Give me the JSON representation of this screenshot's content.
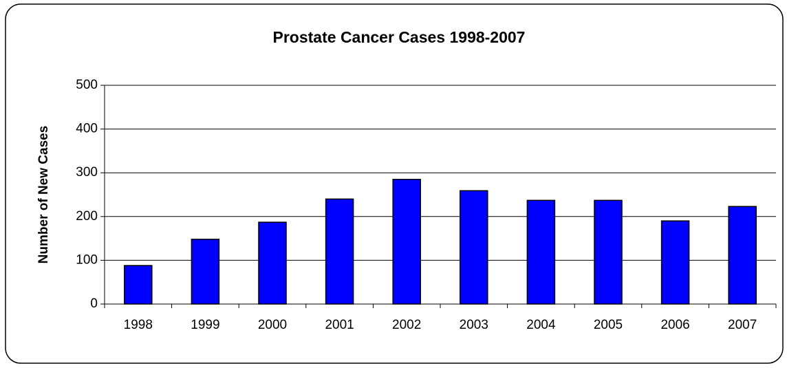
{
  "chart_data": {
    "type": "bar",
    "title": "Prostate Cancer Cases 1998-2007",
    "y_label": "Number of New Cases",
    "categories": [
      "1998",
      "1999",
      "2000",
      "2001",
      "2002",
      "2003",
      "2004",
      "2005",
      "2006",
      "2007"
    ],
    "values": [
      88,
      148,
      187,
      240,
      285,
      259,
      237,
      237,
      190,
      223
    ],
    "color": "#0000ff",
    "ylim": [
      0,
      500
    ],
    "yticks": [
      0,
      100,
      200,
      300,
      400,
      500
    ],
    "grid": true
  }
}
